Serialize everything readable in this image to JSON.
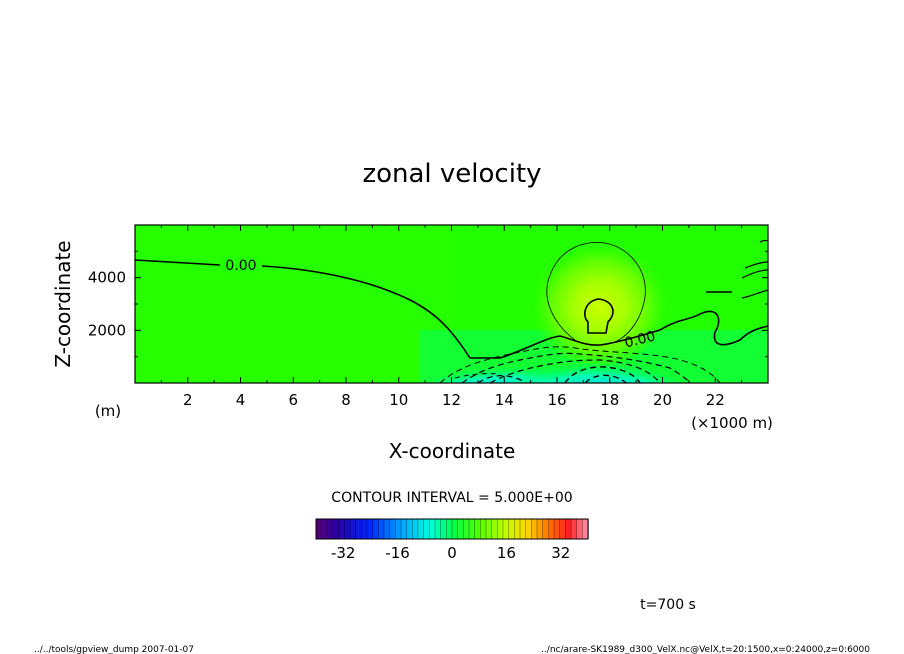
{
  "chart_data": {
    "type": "heatmap",
    "title": "zonal velocity",
    "xlabel": "X-coordinate",
    "ylabel": "Z-coordinate",
    "x_unit": "(×1000 m)",
    "y_unit": "(m)",
    "x_ticks": [
      2,
      4,
      6,
      8,
      10,
      12,
      14,
      16,
      18,
      20,
      22
    ],
    "y_ticks": [
      2000,
      4000
    ],
    "xlim": [
      0,
      24000
    ],
    "ylim": [
      0,
      6000
    ],
    "contour_interval_text": "CONTOUR INTERVAL = 5.000E+00",
    "contour_labels": [
      "0.00",
      "0.00"
    ],
    "colorbar": {
      "ticks": [
        -32,
        -16,
        0,
        16,
        32
      ],
      "range": [
        -40,
        40
      ]
    },
    "time_text": "t=700 s",
    "footer_left": "../../tools/gpview_dump  2007-01-07",
    "footer_right": "../nc/arare-SK1989_d300_VelX.nc@VelX,t=20:1500,x=0:24000,z=0:6000"
  }
}
